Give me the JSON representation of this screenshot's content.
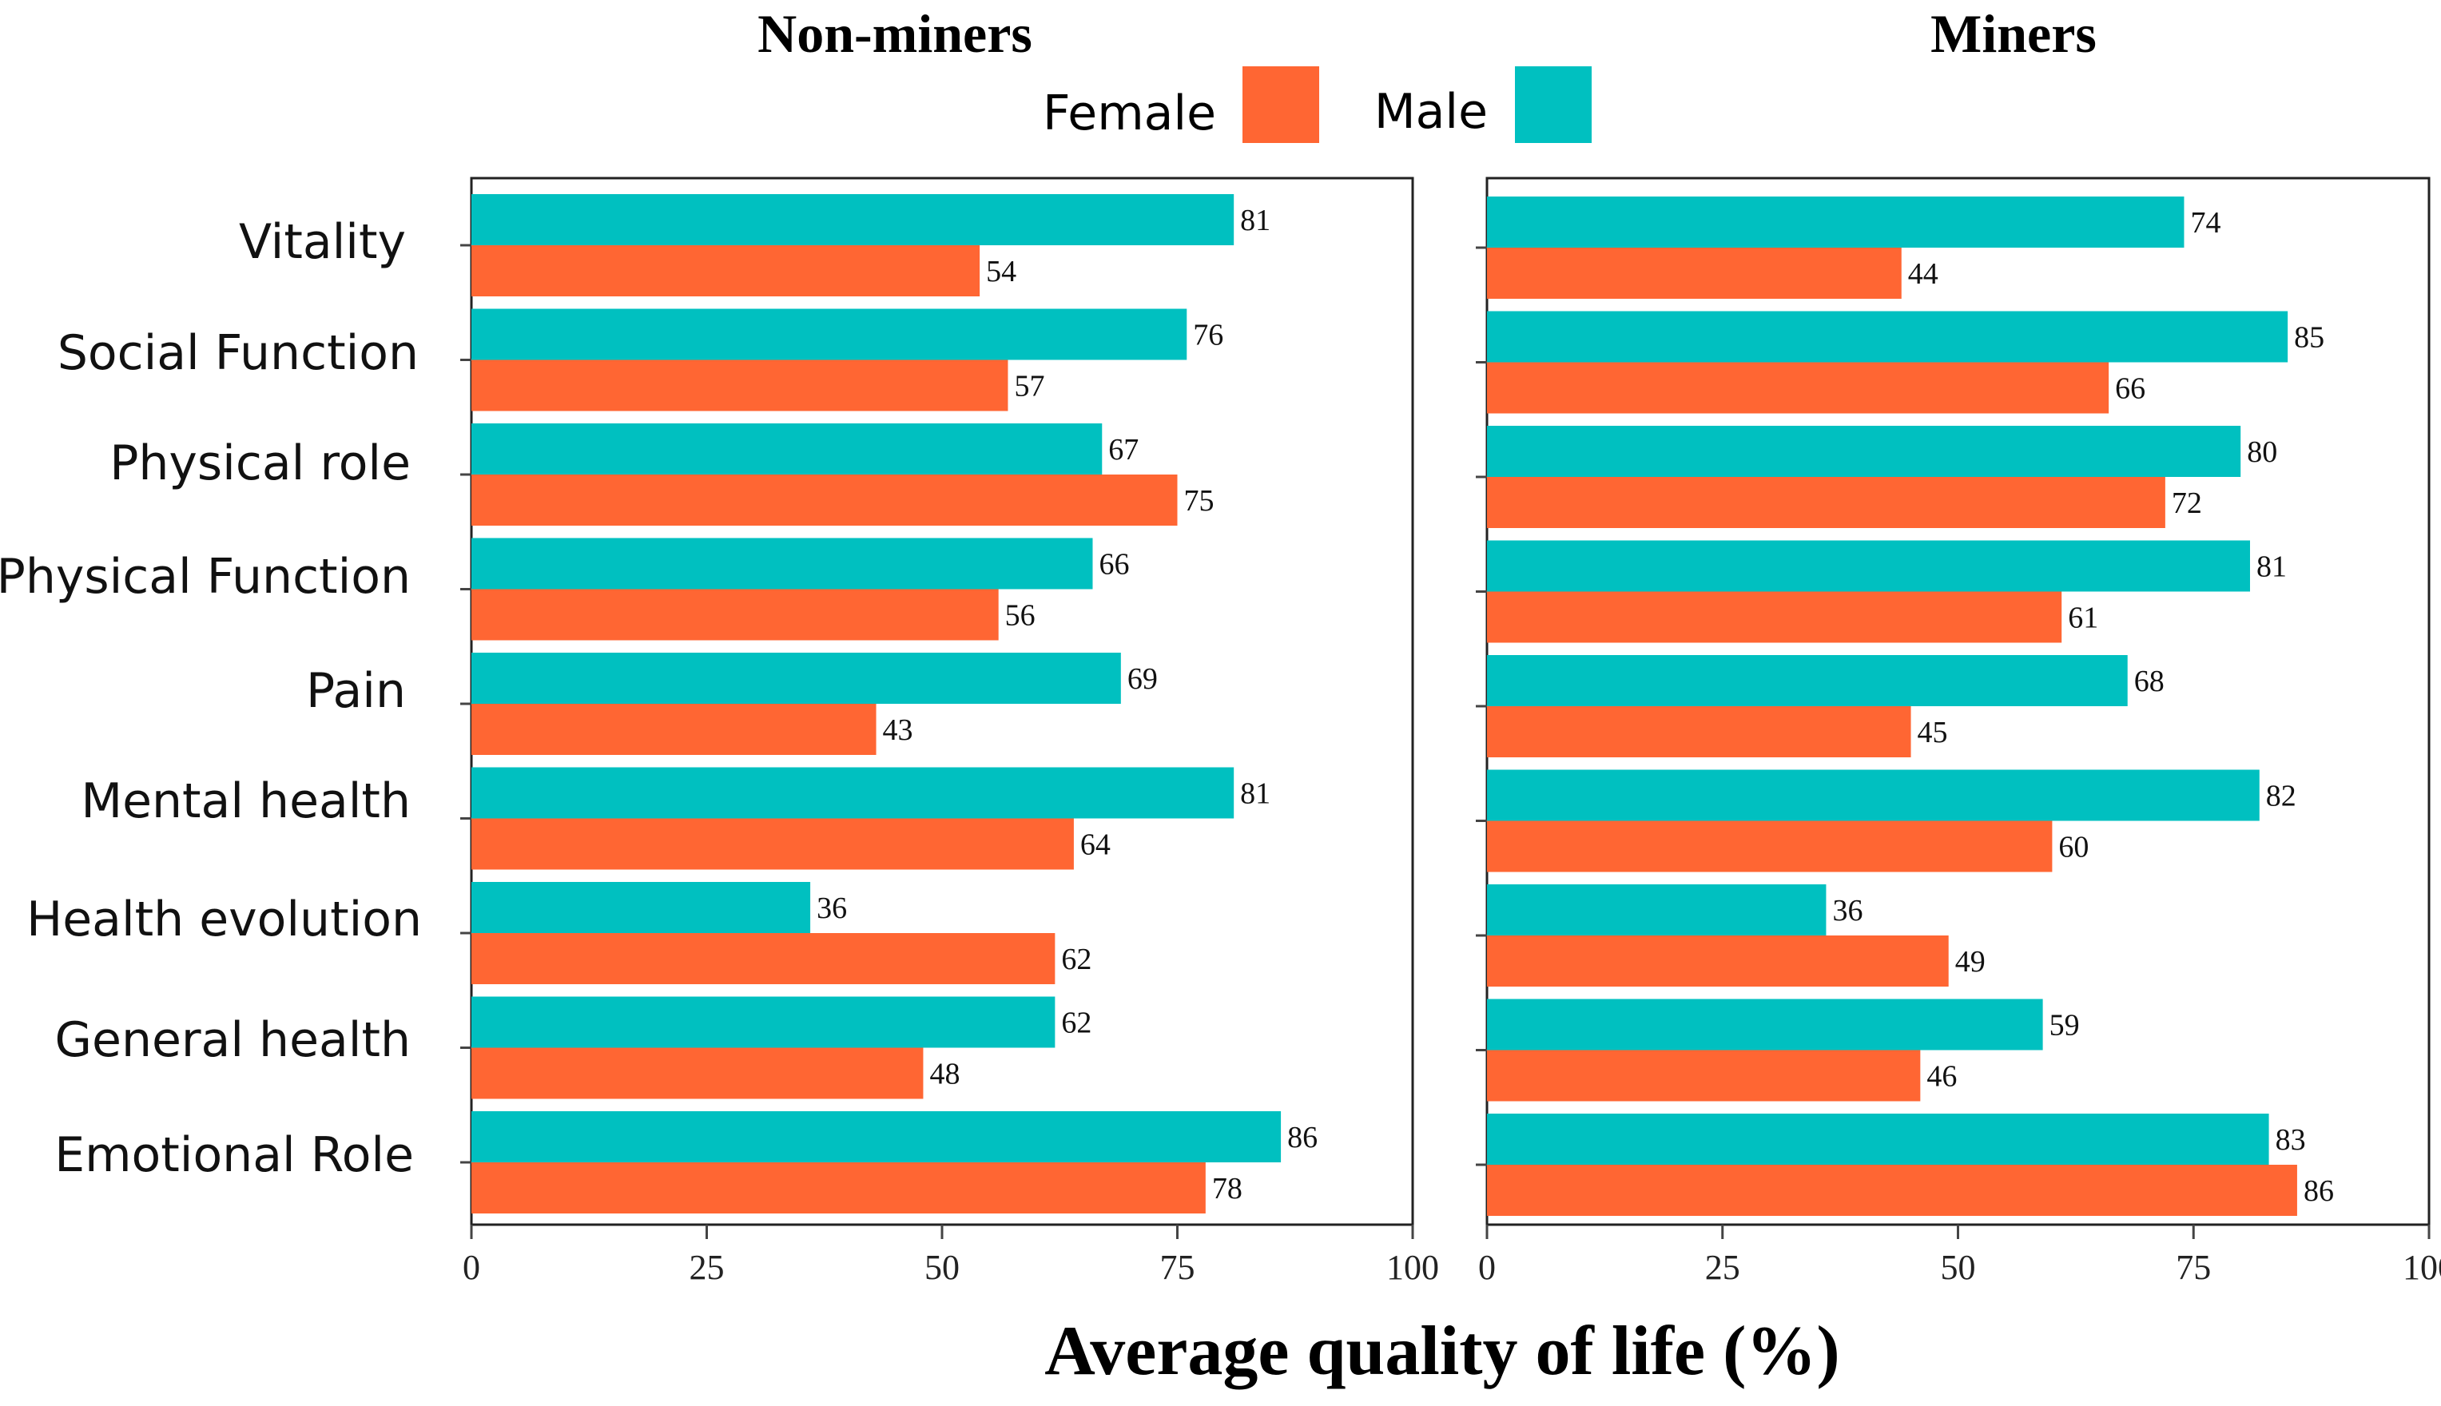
{
  "chart_data": {
    "type": "bar",
    "orientation": "horizontal",
    "xlabel": "Average quality of life (%)",
    "xlim": [
      0,
      100
    ],
    "xticks": [
      0,
      25,
      50,
      75,
      100
    ],
    "categories": [
      "Vitality",
      "Social Function",
      "Physical role",
      "Physical Function",
      "Pain",
      "Mental health",
      "Health evolution",
      "General health",
      "Emotional Role"
    ],
    "legend": {
      "placement": "top-center",
      "entries": [
        {
          "name": "Female",
          "color": "#ff6633"
        },
        {
          "name": "Male",
          "color": "#00c0c0"
        }
      ]
    },
    "panels": [
      {
        "title": "Non-miners",
        "series": [
          {
            "name": "Male",
            "color": "#00c0c0",
            "values": [
              81,
              76,
              67,
              66,
              69,
              81,
              36,
              62,
              86
            ]
          },
          {
            "name": "Female",
            "color": "#ff6633",
            "values": [
              54,
              57,
              75,
              56,
              43,
              64,
              62,
              48,
              78
            ]
          }
        ]
      },
      {
        "title": "Miners",
        "series": [
          {
            "name": "Male",
            "color": "#00c0c0",
            "values": [
              74,
              85,
              80,
              81,
              68,
              82,
              36,
              59,
              83
            ]
          },
          {
            "name": "Female",
            "color": "#ff6633",
            "values": [
              44,
              66,
              72,
              61,
              45,
              60,
              49,
              46,
              86
            ]
          }
        ]
      }
    ]
  }
}
